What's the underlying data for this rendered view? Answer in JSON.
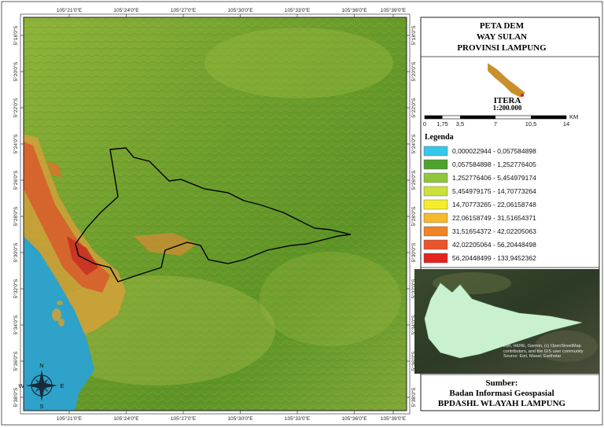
{
  "map": {
    "lon_labels": [
      "105°21'0\"E",
      "105°24'0\"E",
      "105°27'0\"E",
      "105°30'0\"E",
      "105°33'0\"E",
      "105°36'0\"E",
      "105°39'0\"E"
    ],
    "lat_labels": [
      "5°18'0\"S",
      "5°20'0\"S",
      "5°22'0\"S",
      "5°24'0\"S",
      "5°26'0\"S",
      "5°28'0\"S",
      "5°30'0\"S",
      "5°32'0\"S",
      "5°34'0\"S",
      "5°36'0\"S",
      "5°38'0\"S"
    ],
    "compass": {
      "n": "N",
      "s": "S",
      "e": "E",
      "w": "W"
    }
  },
  "title": {
    "line1": "PETA DEM",
    "line2": "WAY SULAN",
    "line3": "PROVINSI LAMPUNG"
  },
  "logo": {
    "name": "ITERA",
    "scale": "1:200.000"
  },
  "scale_bar": {
    "labels": [
      "0",
      "1,75",
      "3,5",
      "7",
      "10,5",
      "14"
    ],
    "unit": "KM"
  },
  "legend": {
    "title": "Legenda",
    "items": [
      {
        "label": "0,000022944 - 0,057584898",
        "color": "#35c8ea"
      },
      {
        "label": "0,057584898 - 1,252776405",
        "color": "#4ea22e"
      },
      {
        "label": "1,252776406 - 5,454979174",
        "color": "#8fc63c"
      },
      {
        "label": "5,454979175 - 14,70773264",
        "color": "#cbe03a"
      },
      {
        "label": "14,70773265 - 22,06158748",
        "color": "#f6ec2c"
      },
      {
        "label": "22,06158749 - 31,51654371",
        "color": "#f6b82c"
      },
      {
        "label": "31,51654372 - 42,02205063",
        "color": "#f18424"
      },
      {
        "label": "42,02205064 - 56,20448498",
        "color": "#e9542a"
      },
      {
        "label": "56,20448499 - 133,9452362",
        "color": "#e2231f"
      }
    ]
  },
  "inset": {
    "credit": "Esri, HERE, Garmin, (c) OpenStreetMap contributors, and the GIS user community Source: Esri, Maxar, Earthstar"
  },
  "source": {
    "heading": "Sumber:",
    "line1": "Badan Informasi Geospasial",
    "line2": "BPDASHL WLAYAH LAMPUNG"
  }
}
